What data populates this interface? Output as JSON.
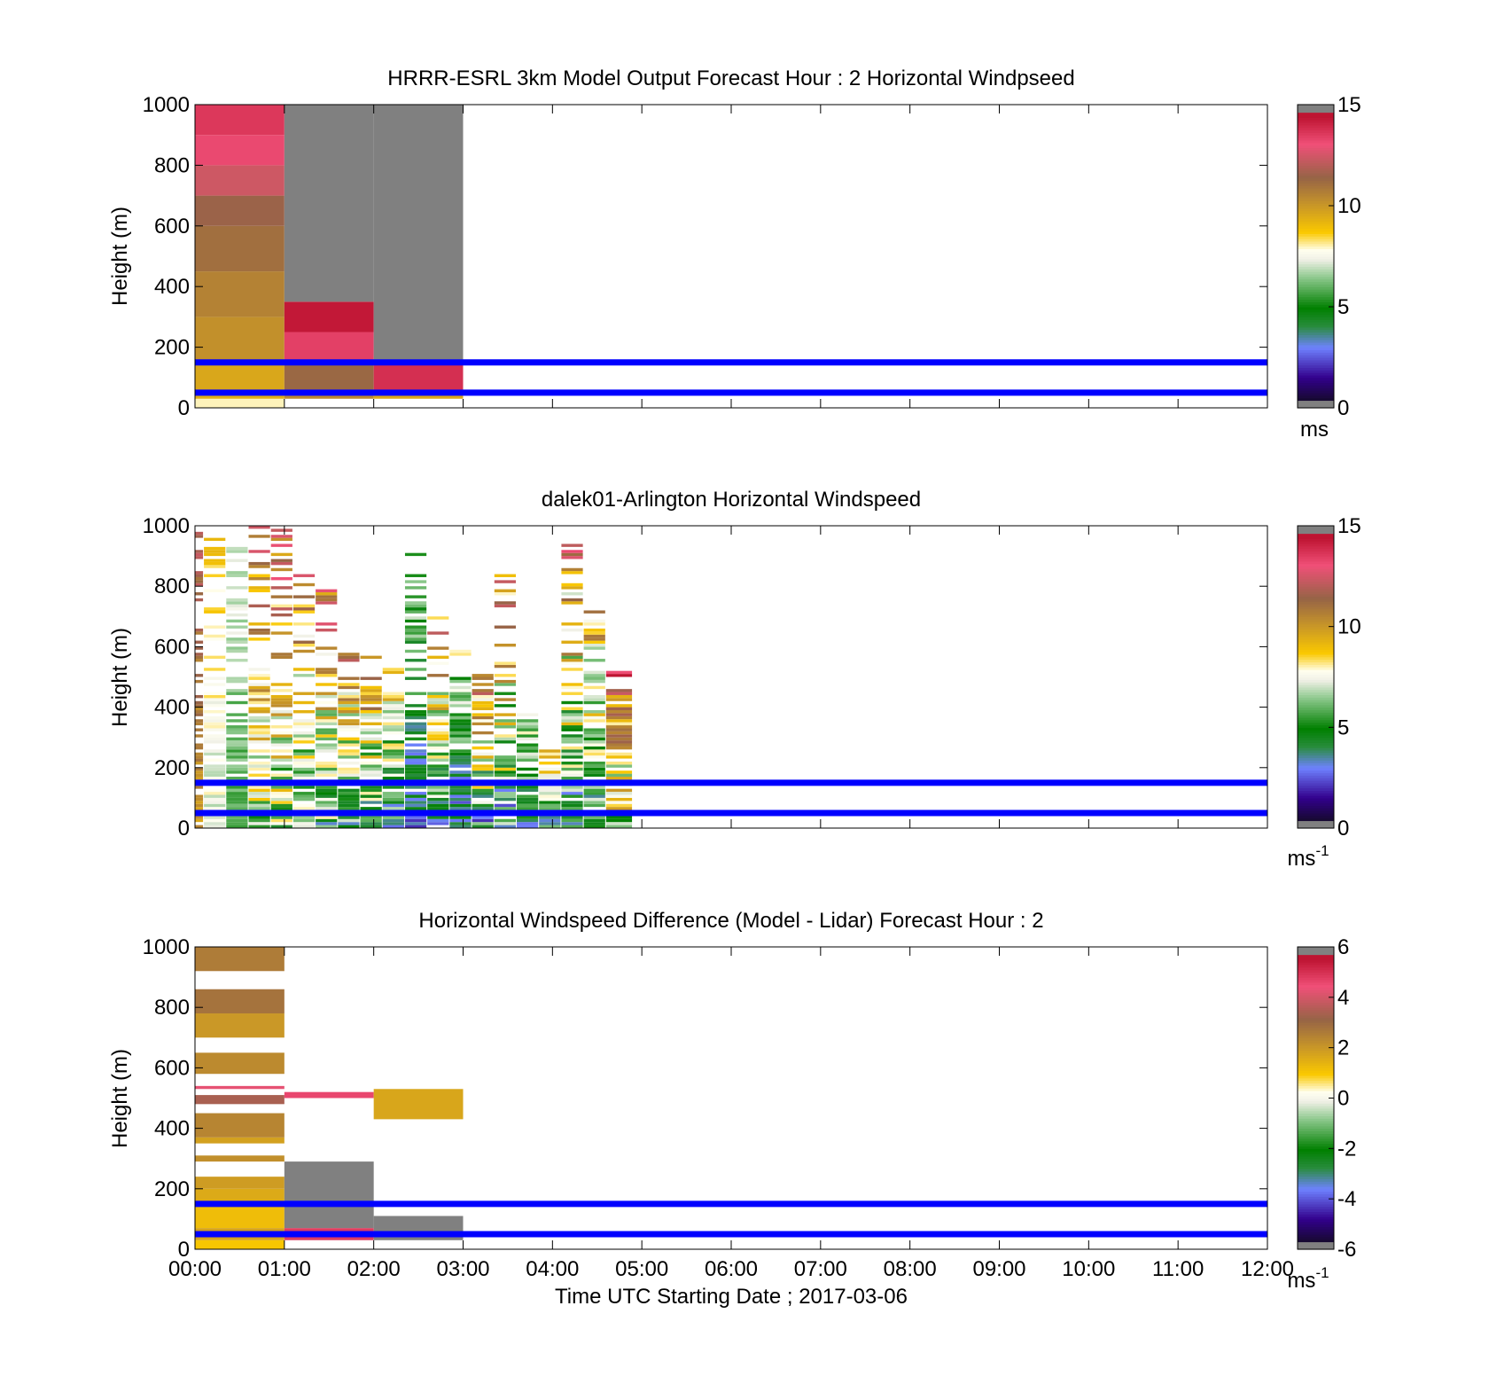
{
  "figure": {
    "xlabel": "Time UTC  Starting Date ; 2017-03-06",
    "x_ticks": [
      "00:00",
      "01:00",
      "02:00",
      "03:00",
      "04:00",
      "05:00",
      "06:00",
      "07:00",
      "08:00",
      "09:00",
      "10:00",
      "11:00",
      "12:00"
    ]
  },
  "chart_data": [
    {
      "type": "heatmap",
      "title": "HRRR-ESRL 3km Model Output   Forecast Hour : 2 Horizontal Windpseed",
      "ylabel": "Height (m)",
      "xlim": [
        0,
        12
      ],
      "ylim": [
        0,
        1000
      ],
      "y_ticks": [
        "0",
        "200",
        "400",
        "600",
        "800",
        "1000"
      ],
      "colorbar": {
        "min": 0,
        "max": 15,
        "ticks": [
          "0",
          "5",
          "10",
          "15"
        ],
        "unit": "ms"
      },
      "reference_lines_m": [
        50,
        150
      ],
      "reference_line_color": "#0000ff",
      "cells": [
        {
          "t0": 0,
          "t1": 1,
          "h0": 0,
          "h1": 30,
          "v": 8.0
        },
        {
          "t0": 0,
          "t1": 1,
          "h0": 30,
          "h1": 60,
          "v": 9.4
        },
        {
          "t0": 0,
          "t1": 1,
          "h0": 60,
          "h1": 150,
          "v": 9.6
        },
        {
          "t0": 0,
          "t1": 1,
          "h0": 150,
          "h1": 300,
          "v": 10.2
        },
        {
          "t0": 0,
          "t1": 1,
          "h0": 300,
          "h1": 450,
          "v": 10.6
        },
        {
          "t0": 0,
          "t1": 1,
          "h0": 450,
          "h1": 600,
          "v": 11.1
        },
        {
          "t0": 0,
          "t1": 1,
          "h0": 600,
          "h1": 700,
          "v": 11.5
        },
        {
          "t0": 0,
          "t1": 1,
          "h0": 700,
          "h1": 800,
          "v": 12.4
        },
        {
          "t0": 0,
          "t1": 1,
          "h0": 800,
          "h1": 900,
          "v": 13.2
        },
        {
          "t0": 0,
          "t1": 1,
          "h0": 900,
          "h1": 1000,
          "v": 13.6
        },
        {
          "t0": 1,
          "t1": 2,
          "h0": 30,
          "h1": 60,
          "v": 10.4
        },
        {
          "t0": 1,
          "t1": 2,
          "h0": 60,
          "h1": 150,
          "v": 11.3
        },
        {
          "t0": 1,
          "t1": 2,
          "h0": 150,
          "h1": 250,
          "v": 13.4
        },
        {
          "t0": 1,
          "t1": 2,
          "h0": 250,
          "h1": 350,
          "v": 14.3
        },
        {
          "t0": 1,
          "t1": 2,
          "h0": 350,
          "h1": 1000,
          "v": 16
        },
        {
          "t0": 2,
          "t1": 3,
          "h0": 30,
          "h1": 60,
          "v": 9.6
        },
        {
          "t0": 2,
          "t1": 3,
          "h0": 60,
          "h1": 150,
          "v": 13.8
        },
        {
          "t0": 2,
          "t1": 3,
          "h0": 150,
          "h1": 1000,
          "v": 16
        }
      ]
    },
    {
      "type": "heatmap",
      "title": "dalek01-Arlington  Horizontal Windspeed",
      "ylabel": "Height (m)",
      "xlim": [
        0,
        12
      ],
      "ylim": [
        0,
        1000
      ],
      "y_ticks": [
        "0",
        "200",
        "400",
        "600",
        "800",
        "1000"
      ],
      "colorbar": {
        "min": 0,
        "max": 15,
        "ticks": [
          "0",
          "5",
          "10",
          "15"
        ],
        "unit": "ms",
        "unit_exp": "-1"
      },
      "reference_lines_m": [
        50,
        150
      ],
      "reference_line_color": "#0000ff",
      "columns": [
        {
          "t0": 0.0,
          "t1": 0.1,
          "top": 1000,
          "low": 9.5,
          "high": 12.5,
          "seed": 1
        },
        {
          "t0": 0.1,
          "t1": 0.35,
          "top": 1000,
          "low": 6.5,
          "high": 9.5,
          "seed": 2
        },
        {
          "t0": 0.35,
          "t1": 0.6,
          "top": 980,
          "low": 5.0,
          "high": 8.0,
          "seed": 3
        },
        {
          "t0": 0.6,
          "t1": 0.85,
          "top": 1000,
          "low": 4.5,
          "high": 13.5,
          "seed": 4
        },
        {
          "t0": 0.85,
          "t1": 1.1,
          "top": 990,
          "low": 4.0,
          "high": 14.0,
          "seed": 5
        },
        {
          "t0": 1.1,
          "t1": 1.35,
          "top": 860,
          "low": 3.5,
          "high": 13.0,
          "seed": 6
        },
        {
          "t0": 1.35,
          "t1": 1.6,
          "top": 790,
          "low": 3.0,
          "high": 14.0,
          "seed": 7
        },
        {
          "t0": 1.6,
          "t1": 1.85,
          "top": 580,
          "low": 2.5,
          "high": 12.5,
          "seed": 8
        },
        {
          "t0": 1.85,
          "t1": 2.1,
          "top": 590,
          "low": 2.5,
          "high": 13.5,
          "seed": 9
        },
        {
          "t0": 2.1,
          "t1": 2.35,
          "top": 570,
          "low": 2.0,
          "high": 11.5,
          "seed": 10
        },
        {
          "t0": 2.35,
          "t1": 2.6,
          "top": 940,
          "low": 2.0,
          "high": 8.0,
          "seed": 11
        },
        {
          "t0": 2.6,
          "t1": 2.85,
          "top": 730,
          "low": 2.0,
          "high": 13.0,
          "seed": 12
        },
        {
          "t0": 2.85,
          "t1": 3.1,
          "top": 590,
          "low": 1.5,
          "high": 9.0,
          "seed": 13
        },
        {
          "t0": 3.1,
          "t1": 3.35,
          "top": 540,
          "low": 1.5,
          "high": 14.0,
          "seed": 14
        },
        {
          "t0": 3.35,
          "t1": 3.6,
          "top": 850,
          "low": 1.5,
          "high": 14.0,
          "seed": 15
        },
        {
          "t0": 3.6,
          "t1": 3.85,
          "top": 380,
          "low": 2.5,
          "high": 9.0,
          "seed": 16
        },
        {
          "t0": 3.85,
          "t1": 4.1,
          "top": 260,
          "low": 2.5,
          "high": 11.0,
          "seed": 17
        },
        {
          "t0": 4.1,
          "t1": 4.35,
          "top": 940,
          "low": 1.5,
          "high": 13.5,
          "seed": 18
        },
        {
          "t0": 4.35,
          "t1": 4.6,
          "top": 780,
          "low": 2.5,
          "high": 12.0,
          "seed": 19
        },
        {
          "t0": 4.6,
          "t1": 4.9,
          "top": 560,
          "low": 4.0,
          "high": 15.5,
          "seed": 20
        }
      ]
    },
    {
      "type": "heatmap",
      "title": "Horizontal Windspeed Difference (Model - Lidar) Forecast Hour : 2",
      "ylabel": "Height (m)",
      "xlim": [
        0,
        12
      ],
      "ylim": [
        0,
        1000
      ],
      "y_ticks": [
        "0",
        "200",
        "400",
        "600",
        "800",
        "1000"
      ],
      "colorbar": {
        "min": -6,
        "max": 6,
        "ticks": [
          "-6",
          "-4",
          "-2",
          "0",
          "2",
          "4",
          "6"
        ],
        "unit": "ms",
        "unit_exp": "-1"
      },
      "reference_lines_m": [
        50,
        150
      ],
      "reference_line_color": "#0000ff",
      "cells": [
        {
          "t0": 0,
          "t1": 1,
          "h0": 0,
          "h1": 30,
          "v": 1.0
        },
        {
          "t0": 0,
          "t1": 1,
          "h0": 30,
          "h1": 70,
          "v": 1.8
        },
        {
          "t0": 0,
          "t1": 1,
          "h0": 70,
          "h1": 150,
          "v": 1.2
        },
        {
          "t0": 0,
          "t1": 1,
          "h0": 150,
          "h1": 200,
          "v": 1.6
        },
        {
          "t0": 0,
          "t1": 1,
          "h0": 200,
          "h1": 240,
          "v": 1.9
        },
        {
          "t0": 0,
          "t1": 1,
          "h0": 290,
          "h1": 310,
          "v": 2.2
        },
        {
          "t0": 0,
          "t1": 1,
          "h0": 350,
          "h1": 370,
          "v": 1.8
        },
        {
          "t0": 0,
          "t1": 1,
          "h0": 370,
          "h1": 450,
          "v": 2.4
        },
        {
          "t0": 0,
          "t1": 1,
          "h0": 480,
          "h1": 510,
          "v": 3.4
        },
        {
          "t0": 0,
          "t1": 1,
          "h0": 530,
          "h1": 540,
          "v": 4.3
        },
        {
          "t0": 0,
          "t1": 1,
          "h0": 580,
          "h1": 650,
          "v": 2.3
        },
        {
          "t0": 0,
          "t1": 1,
          "h0": 700,
          "h1": 780,
          "v": 2.0
        },
        {
          "t0": 0,
          "t1": 1,
          "h0": 780,
          "h1": 860,
          "v": 2.8
        },
        {
          "t0": 0,
          "t1": 1,
          "h0": 920,
          "h1": 1000,
          "v": 2.6
        },
        {
          "t0": 1,
          "t1": 2,
          "h0": 30,
          "h1": 70,
          "v": 4.8
        },
        {
          "t0": 1,
          "t1": 2,
          "h0": 70,
          "h1": 290,
          "v": 7
        },
        {
          "t0": 1,
          "t1": 2,
          "h0": 500,
          "h1": 520,
          "v": 4.6
        },
        {
          "t0": 2,
          "t1": 3,
          "h0": 30,
          "h1": 110,
          "v": 7
        },
        {
          "t0": 2,
          "t1": 3,
          "h0": 430,
          "h1": 530,
          "v": 1.7
        }
      ]
    }
  ]
}
